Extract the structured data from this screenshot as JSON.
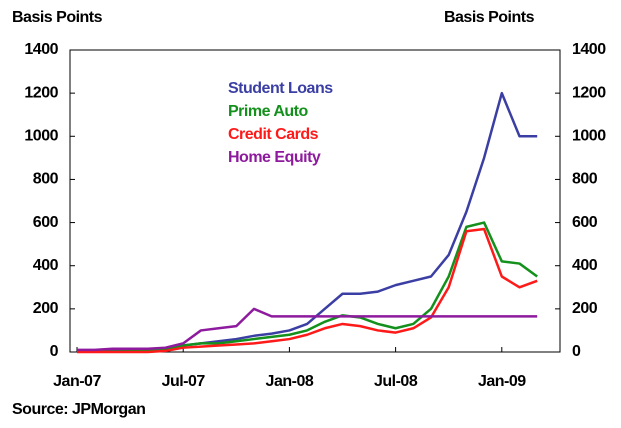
{
  "chart_data": {
    "type": "line",
    "y_label": "Basis Points",
    "y2_label": "Basis Points",
    "source": "Source: JPMorgan",
    "x": [
      "Jan-07",
      "Feb-07",
      "Mar-07",
      "Apr-07",
      "May-07",
      "Jun-07",
      "Jul-07",
      "Aug-07",
      "Sep-07",
      "Oct-07",
      "Nov-07",
      "Dec-07",
      "Jan-08",
      "Feb-08",
      "Mar-08",
      "Apr-08",
      "May-08",
      "Jun-08",
      "Jul-08",
      "Aug-08",
      "Sep-08",
      "Oct-08",
      "Nov-08",
      "Dec-08",
      "Jan-09",
      "Feb-09",
      "Mar-09"
    ],
    "xticks": [
      "Jan-07",
      "Jul-07",
      "Jan-08",
      "Jul-08",
      "Jan-09"
    ],
    "series": [
      {
        "name": "Student Loans",
        "color": "#3b3fa3",
        "values": [
          5,
          5,
          5,
          5,
          8,
          15,
          30,
          40,
          50,
          60,
          75,
          85,
          100,
          130,
          200,
          270,
          270,
          280,
          310,
          330,
          350,
          450,
          650,
          900,
          1200,
          1000,
          1000
        ]
      },
      {
        "name": "Prime Auto",
        "color": "#14901c",
        "values": [
          2,
          2,
          2,
          3,
          5,
          10,
          30,
          40,
          40,
          50,
          60,
          70,
          80,
          100,
          140,
          170,
          160,
          130,
          110,
          130,
          200,
          350,
          580,
          600,
          420,
          410,
          350
        ]
      },
      {
        "name": "Credit Cards",
        "color": "#ff1a1a",
        "values": [
          0,
          0,
          0,
          0,
          0,
          5,
          20,
          25,
          30,
          35,
          40,
          50,
          60,
          80,
          110,
          130,
          120,
          100,
          90,
          110,
          160,
          300,
          560,
          570,
          350,
          300,
          330
        ]
      },
      {
        "name": "Home Equity",
        "color": "#8e1a9e",
        "values": [
          10,
          10,
          15,
          15,
          15,
          20,
          40,
          100,
          110,
          120,
          200,
          165,
          165,
          165,
          165,
          165,
          165,
          165,
          165,
          165,
          165,
          165,
          165,
          165,
          165,
          165,
          165
        ]
      }
    ],
    "ylim": [
      0,
      1400
    ],
    "yticks": [
      0,
      200,
      400,
      600,
      800,
      1000,
      1200,
      1400
    ],
    "y2lim": [
      0,
      1400
    ],
    "y2ticks": [
      0,
      200,
      400,
      600,
      800,
      1000,
      1200,
      1400
    ]
  }
}
